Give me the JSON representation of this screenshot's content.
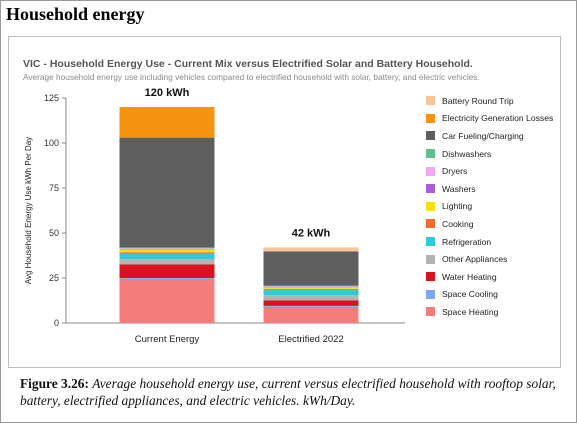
{
  "page": {
    "heading": "Household energy"
  },
  "figure": {
    "label": "Figure 3.26:",
    "caption": "Average household energy use, current versus electrified household with rooftop solar, battery, electrified appliances, and electric vehicles. kWh/Day."
  },
  "chart_data": {
    "type": "bar",
    "stacked": true,
    "title": "VIC - Household Energy Use - Current Mix versus Electrified Solar and Battery Household.",
    "subtitle": "Average household energy use including vehicles compared to electrified household with solar, battery, and electric vehicles.",
    "ylabel": "Avg Household Energy Use kWh Per Day",
    "xlabel": "",
    "ylim": [
      0,
      125
    ],
    "yticks": [
      0,
      25,
      50,
      75,
      100,
      125
    ],
    "grid": false,
    "legend_position": "right",
    "categories": [
      "Current Energy",
      "Electrified 2022"
    ],
    "totals": [
      "120 kWh",
      "42 kWh"
    ],
    "series": [
      {
        "name": "Space Heating",
        "color": "#f47c7c",
        "values": [
          24.5,
          9
        ]
      },
      {
        "name": "Space Cooling",
        "color": "#7fa7f5",
        "values": [
          0.5,
          0.5
        ]
      },
      {
        "name": "Water Heating",
        "color": "#d9121f",
        "values": [
          7.5,
          3
        ]
      },
      {
        "name": "Other Appliances",
        "color": "#b3b3b3",
        "values": [
          3,
          3
        ]
      },
      {
        "name": "Refrigeration",
        "color": "#2ecad8",
        "values": [
          3,
          3
        ]
      },
      {
        "name": "Cooking",
        "color": "#f26a2e",
        "values": [
          0.8,
          0.5
        ]
      },
      {
        "name": "Lighting",
        "color": "#f5e10a",
        "values": [
          1.5,
          1
        ]
      },
      {
        "name": "Washers",
        "color": "#a55ed6",
        "values": [
          0.2,
          0.2
        ]
      },
      {
        "name": "Dryers",
        "color": "#f2a7ef",
        "values": [
          0.5,
          0.3
        ]
      },
      {
        "name": "Dishwashers",
        "color": "#5fbf8f",
        "values": [
          0.5,
          0.3
        ]
      },
      {
        "name": "Car Fueling/Charging",
        "color": "#5e5e5e",
        "values": [
          61,
          19
        ]
      },
      {
        "name": "Electricity Generation Losses",
        "color": "#f7940f",
        "values": [
          17,
          0
        ]
      },
      {
        "name": "Battery Round Trip",
        "color": "#f7c49a",
        "values": [
          0,
          2.2
        ]
      }
    ]
  }
}
